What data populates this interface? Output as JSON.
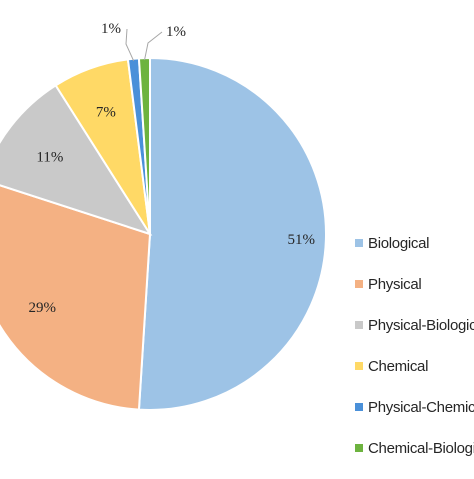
{
  "chart_data": {
    "type": "pie",
    "title": "",
    "slices": [
      {
        "name": "Biological",
        "value": 51,
        "label": "51%",
        "color": "#9DC3E6"
      },
      {
        "name": "Physical",
        "value": 29,
        "label": "29%",
        "color": "#F4B183"
      },
      {
        "name": "Physical-Biological",
        "value": 11,
        "label": "11%",
        "color": "#C9C9C9"
      },
      {
        "name": "Chemical",
        "value": 7,
        "label": "7%",
        "color": "#FFD966"
      },
      {
        "name": "Physical-Chemical",
        "value": 1,
        "label": "1%",
        "color": "#4A90D9"
      },
      {
        "name": "Chemical-Biological",
        "value": 1,
        "label": "1%",
        "color": "#6DB33F"
      }
    ],
    "legend_placement": "right"
  }
}
